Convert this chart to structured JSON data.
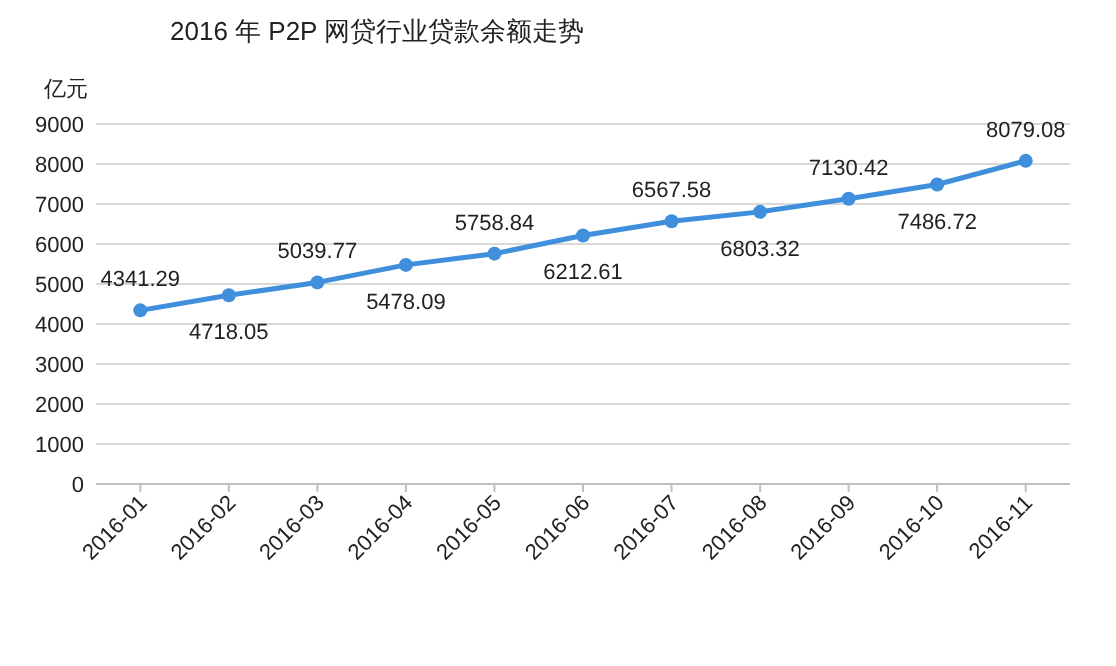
{
  "chart_data": {
    "type": "line",
    "title": "2016 年 P2P 网贷行业贷款余额走势",
    "ylabel": "亿元",
    "categories": [
      "2016-01",
      "2016-02",
      "2016-03",
      "2016-04",
      "2016-05",
      "2016-06",
      "2016-07",
      "2016-08",
      "2016-09",
      "2016-10",
      "2016-11"
    ],
    "series": [
      {
        "color": "#3f8fdc",
        "values": [
          4341.29,
          4718.05,
          5039.77,
          5478.09,
          5758.84,
          6212.61,
          6567.58,
          6803.32,
          7130.42,
          7486.72,
          8079.08
        ]
      }
    ],
    "ylim": [
      0,
      9000
    ],
    "yticks": [
      0,
      1000,
      2000,
      3000,
      4000,
      5000,
      6000,
      7000,
      8000,
      9000
    ],
    "grid": "y",
    "data_labels": true,
    "marker": "circle",
    "line_style": "solid"
  }
}
